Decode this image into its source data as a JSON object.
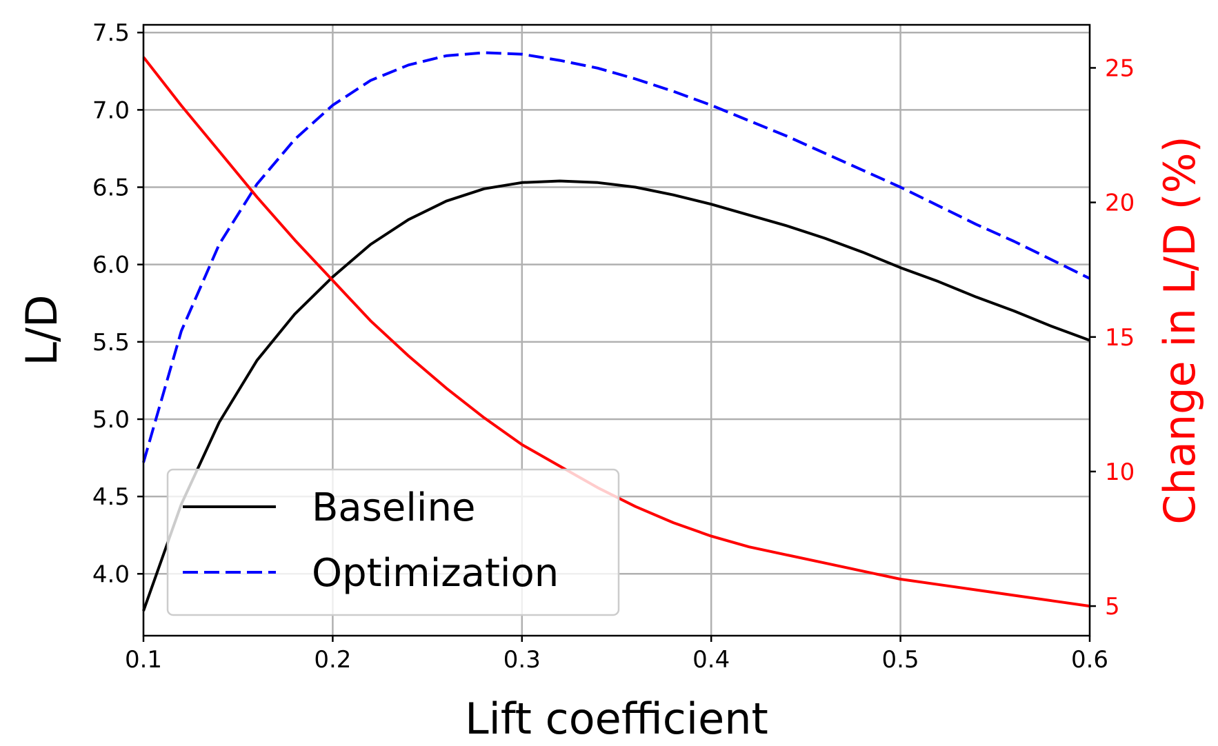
{
  "chart_data": {
    "type": "line",
    "xlabel": "Lift coefficient",
    "ylabel": "L/D",
    "y2label": "Change in L/D (%)",
    "xlim": [
      0.1,
      0.6
    ],
    "ylim": [
      3.6,
      7.55
    ],
    "y2lim": [
      3.9,
      26.6
    ],
    "grid": true,
    "legend_position": "lower-left",
    "x_ticks": [
      0.1,
      0.2,
      0.3,
      0.4,
      0.5,
      0.6
    ],
    "x_tick_labels": [
      "0.1",
      "0.2",
      "0.3",
      "0.4",
      "0.5",
      "0.6"
    ],
    "y_ticks": [
      4.0,
      4.5,
      5.0,
      5.5,
      6.0,
      6.5,
      7.0,
      7.5
    ],
    "y_tick_labels": [
      "4.0",
      "4.5",
      "5.0",
      "5.5",
      "6.0",
      "6.5",
      "7.0",
      "7.5"
    ],
    "y2_ticks": [
      5,
      10,
      15,
      20,
      25
    ],
    "y2_tick_labels": [
      "5",
      "10",
      "15",
      "20",
      "25"
    ],
    "x": [
      0.1,
      0.12,
      0.14,
      0.16,
      0.18,
      0.2,
      0.22,
      0.24,
      0.26,
      0.28,
      0.3,
      0.32,
      0.34,
      0.36,
      0.38,
      0.4,
      0.42,
      0.44,
      0.46,
      0.48,
      0.5,
      0.52,
      0.54,
      0.56,
      0.58,
      0.6
    ],
    "series": [
      {
        "name": "Baseline",
        "axis": "left",
        "color": "#000000",
        "dash": "solid",
        "values": [
          3.76,
          4.45,
          4.98,
          5.38,
          5.68,
          5.92,
          6.13,
          6.29,
          6.41,
          6.49,
          6.53,
          6.54,
          6.53,
          6.5,
          6.45,
          6.39,
          6.32,
          6.25,
          6.17,
          6.08,
          5.98,
          5.89,
          5.79,
          5.7,
          5.6,
          5.51
        ]
      },
      {
        "name": "Optimization",
        "axis": "left",
        "color": "#0000ff",
        "dash": "dashed",
        "values": [
          4.72,
          5.57,
          6.13,
          6.52,
          6.81,
          7.03,
          7.19,
          7.29,
          7.35,
          7.37,
          7.36,
          7.32,
          7.27,
          7.2,
          7.12,
          7.03,
          6.93,
          6.83,
          6.72,
          6.61,
          6.5,
          6.38,
          6.26,
          6.15,
          6.03,
          5.91
        ]
      },
      {
        "name": "Change in L/D (%)",
        "axis": "right",
        "color": "#ff0000",
        "dash": "solid",
        "legend": false,
        "values": [
          25.4,
          23.6,
          21.9,
          20.2,
          18.6,
          17.1,
          15.6,
          14.3,
          13.1,
          12.0,
          11.0,
          10.2,
          9.4,
          8.7,
          8.1,
          7.6,
          7.2,
          6.9,
          6.6,
          6.3,
          6.0,
          5.8,
          5.6,
          5.4,
          5.2,
          5.0
        ]
      }
    ],
    "legend_entries": [
      "Baseline",
      "Optimization"
    ]
  }
}
